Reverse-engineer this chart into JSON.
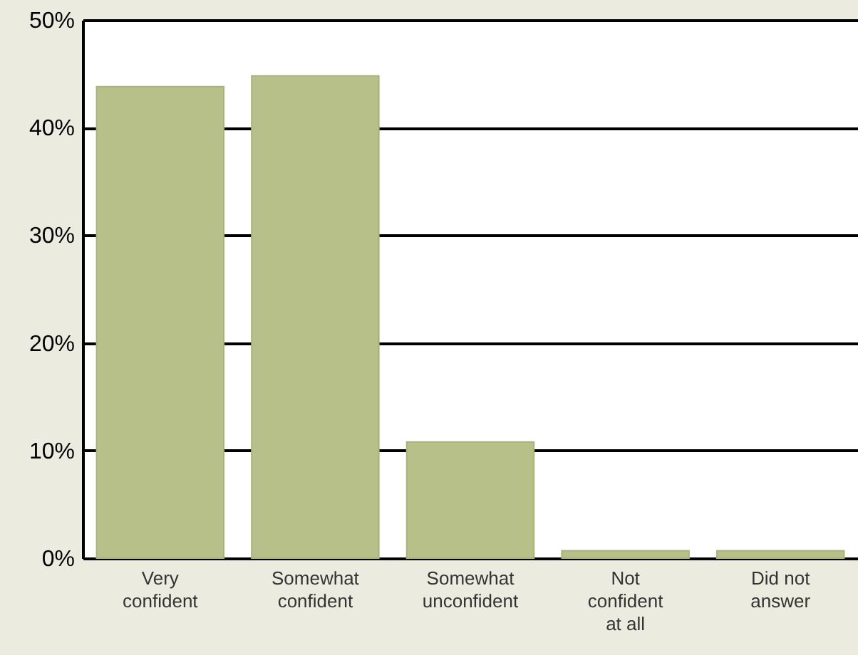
{
  "chart_data": {
    "type": "bar",
    "categories": [
      "Very\nconfident",
      "Somewhat\nconfident",
      "Somewhat\nunconfident",
      "Not\nconfident\nat all",
      "Did not\nanswer"
    ],
    "values": [
      43.8,
      44.8,
      10.8,
      0.7,
      0.7
    ],
    "color": "#b8c08a",
    "ylim": [
      0,
      50
    ],
    "yticks": [
      {
        "value": 0,
        "label": "0%"
      },
      {
        "value": 10,
        "label": "10%"
      },
      {
        "value": 20,
        "label": "20%"
      },
      {
        "value": 30,
        "label": "30%"
      },
      {
        "value": 40,
        "label": "40%"
      },
      {
        "value": 50,
        "label": "50%"
      }
    ],
    "grid": "y"
  }
}
